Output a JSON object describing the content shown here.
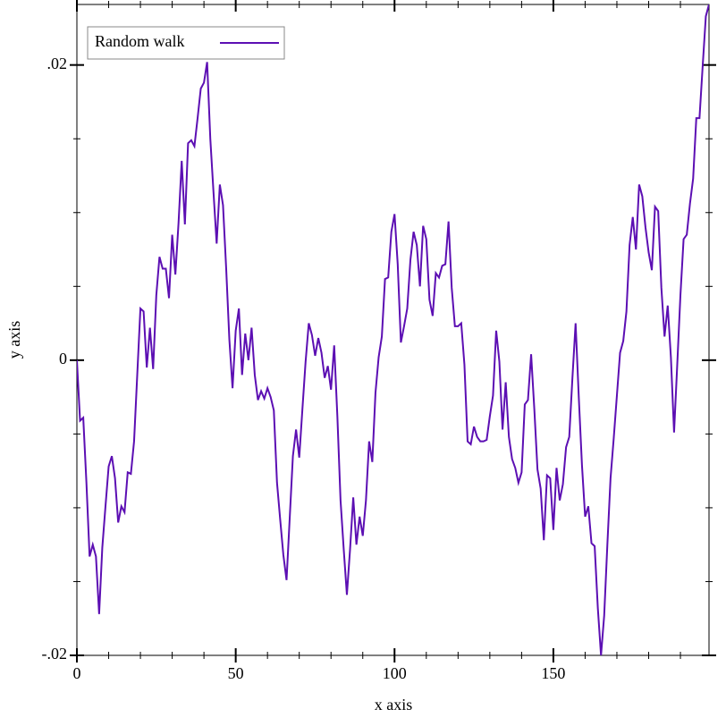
{
  "chart_data": {
    "type": "line",
    "xlabel": "x axis",
    "ylabel": "y axis",
    "x": [
      0,
      1,
      2,
      3,
      4,
      5,
      6,
      7,
      8,
      9,
      10,
      11,
      12,
      13,
      14,
      15,
      16,
      17,
      18,
      19,
      20,
      21,
      22,
      23,
      24,
      25,
      26,
      27,
      28,
      29,
      30,
      31,
      32,
      33,
      34,
      35,
      36,
      37,
      38,
      39,
      40,
      41,
      42,
      43,
      44,
      45,
      46,
      47,
      48,
      49,
      50,
      51,
      52,
      53,
      54,
      55,
      56,
      57,
      58,
      59,
      60,
      61,
      62,
      63,
      64,
      65,
      66,
      67,
      68,
      69,
      70,
      71,
      72,
      73,
      74,
      75,
      76,
      77,
      78,
      79,
      80,
      81,
      82,
      83,
      84,
      85,
      86,
      87,
      88,
      89,
      90,
      91,
      92,
      93,
      94,
      95,
      96,
      97,
      98,
      99,
      100,
      101,
      102,
      103,
      104,
      105,
      106,
      107,
      108,
      109,
      110,
      111,
      112,
      113,
      114,
      115,
      116,
      117,
      118,
      119,
      120,
      121,
      122,
      123,
      124,
      125,
      126,
      127,
      128,
      129,
      130,
      131,
      132,
      133,
      134,
      135,
      136,
      137,
      138,
      139,
      140,
      141,
      142,
      143,
      144,
      145,
      146,
      147,
      148,
      149,
      150,
      151,
      152,
      153,
      154,
      155,
      156,
      157,
      158,
      159,
      160,
      161,
      162,
      163,
      164,
      165,
      166,
      167,
      168,
      169,
      170,
      171,
      172,
      173,
      174,
      175,
      176,
      177,
      178,
      179,
      180,
      181,
      182,
      183,
      184,
      185,
      186,
      187,
      188,
      189,
      190,
      191,
      192,
      193,
      194,
      195,
      196,
      197,
      198,
      199
    ],
    "series": [
      {
        "name": "Random walk",
        "color": "#5c0fb3",
        "values": [
          0,
          -0.0041,
          -0.0039,
          -0.0083,
          -0.0133,
          -0.0125,
          -0.0133,
          -0.0172,
          -0.0127,
          -0.0099,
          -0.0072,
          -0.0065,
          -0.008,
          -0.011,
          -0.0099,
          -0.0103,
          -0.0076,
          -0.0077,
          -0.0055,
          -0.001,
          0.0035,
          0.0033,
          -0.0005,
          0.0022,
          -0.0006,
          0.0044,
          0.007,
          0.0062,
          0.0062,
          0.0042,
          0.0085,
          0.0058,
          0.0093,
          0.0135,
          0.0092,
          0.0147,
          0.0149,
          0.0145,
          0.0164,
          0.0184,
          0.0188,
          0.0202,
          0.015,
          0.0114,
          0.0079,
          0.0119,
          0.0105,
          0.0062,
          0.0014,
          -0.0019,
          0.002,
          0.0035,
          -0.001,
          0.0018,
          0,
          0.0022,
          -0.001,
          -0.0027,
          -0.0021,
          -0.0026,
          -0.0019,
          -0.0025,
          -0.0034,
          -0.0083,
          -0.0108,
          -0.0132,
          -0.0149,
          -0.0107,
          -0.0065,
          -0.0047,
          -0.0066,
          -0.0033,
          -0.0001,
          0.0025,
          0.0017,
          0.0003,
          0.0015,
          0.0005,
          -0.0012,
          -0.0004,
          -0.002,
          0.001,
          -0.0038,
          -0.0095,
          -0.0128,
          -0.0159,
          -0.0128,
          -0.0093,
          -0.0125,
          -0.0106,
          -0.0119,
          -0.0095,
          -0.0055,
          -0.0069,
          -0.0022,
          0.0002,
          0.0016,
          0.0055,
          0.0056,
          0.0087,
          0.0099,
          0.0065,
          0.0012,
          0.0023,
          0.0035,
          0.0068,
          0.0087,
          0.0078,
          0.005,
          0.0091,
          0.0082,
          0.0041,
          0.003,
          0.0059,
          0.0056,
          0.0064,
          0.0065,
          0.0094,
          0.0049,
          0.0023,
          0.0023,
          0.0025,
          -0.0003,
          -0.0055,
          -0.0057,
          -0.0045,
          -0.0052,
          -0.0055,
          -0.0055,
          -0.0054,
          -0.0038,
          -0.0024,
          0.002,
          -0.0001,
          -0.0047,
          -0.0015,
          -0.0052,
          -0.0067,
          -0.0073,
          -0.0083,
          -0.0076,
          -0.003,
          -0.0027,
          0.0004,
          -0.0033,
          -0.0074,
          -0.0087,
          -0.0122,
          -0.0078,
          -0.008,
          -0.0115,
          -0.0073,
          -0.0095,
          -0.0084,
          -0.0059,
          -0.0052,
          -0.0012,
          0.0025,
          -0.0025,
          -0.0071,
          -0.0106,
          -0.0099,
          -0.0124,
          -0.0126,
          -0.0168,
          -0.02,
          -0.0173,
          -0.0125,
          -0.008,
          -0.0053,
          -0.0024,
          0.0005,
          0.0013,
          0.0033,
          0.0078,
          0.0097,
          0.0075,
          0.0119,
          0.0111,
          0.009,
          0.0073,
          0.0061,
          0.0104,
          0.0101,
          0.0049,
          0.0016,
          0.0037,
          0.0002,
          -0.0049,
          -0.0003,
          0.0044,
          0.0082,
          0.0085,
          0.0106,
          0.0123,
          0.0164,
          0.0164,
          0.0199,
          0.0233,
          0.0241
        ]
      }
    ],
    "xlim": [
      0,
      199
    ],
    "ylim": [
      -0.02,
      0.0241
    ],
    "xticks": [
      0,
      50,
      100,
      150
    ],
    "xminorticks": [
      10,
      20,
      30,
      40,
      60,
      70,
      80,
      90,
      110,
      120,
      130,
      140,
      160,
      170,
      180,
      190
    ],
    "yticks": [
      {
        "value": -0.02,
        "label": "-.02"
      },
      0,
      {
        "value": 0.02,
        "label": ".02"
      }
    ],
    "yminorticks": [
      -0.015,
      -0.01,
      -0.005,
      0.005,
      0.01,
      0.015
    ],
    "legend": "upper-left"
  }
}
